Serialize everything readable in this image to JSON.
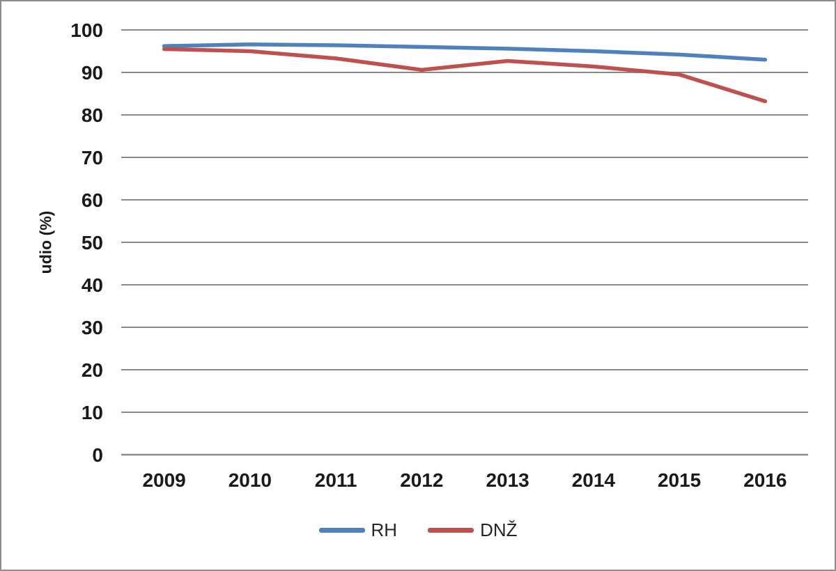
{
  "frame": {
    "background": "#ffffff",
    "border_color": "#8c8c8c"
  },
  "chart_data": {
    "type": "line",
    "title": "",
    "xlabel": "",
    "ylabel": "udio (%)",
    "categories": [
      "2009",
      "2010",
      "2011",
      "2012",
      "2013",
      "2014",
      "2015",
      "2016"
    ],
    "series": [
      {
        "name": "RH",
        "color": "#4f81bd",
        "values": [
          96.2,
          96.6,
          96.4,
          96.0,
          95.6,
          95.0,
          94.2,
          93.0
        ]
      },
      {
        "name": "DNŽ",
        "color": "#c0504d",
        "values": [
          95.5,
          95.0,
          93.3,
          90.6,
          92.7,
          91.4,
          89.5,
          83.2
        ]
      }
    ],
    "ylim": [
      0,
      100
    ],
    "y_tick_step": 10,
    "y_tick_labels": [
      "0",
      "10",
      "20",
      "30",
      "40",
      "50",
      "60",
      "70",
      "80",
      "90",
      "100"
    ],
    "grid": "horizontal",
    "gridline_color": "#8a8a8a",
    "axis_text_color": "#1a1a1a",
    "legend_position": "bottom"
  }
}
